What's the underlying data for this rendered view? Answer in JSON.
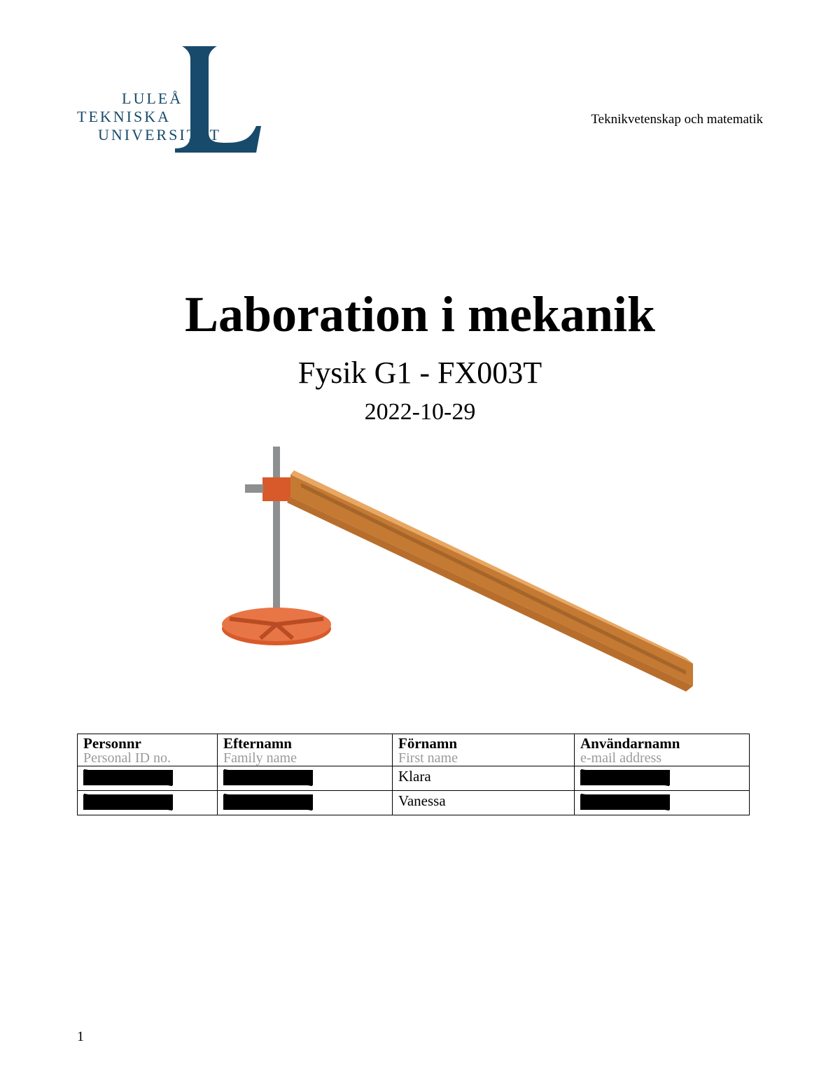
{
  "logo": {
    "word1": "LULEÅ",
    "word2": "TEKNISKA",
    "word3": "UNIVERSITET",
    "color": "#184b6b"
  },
  "header": {
    "department": "Teknikvetenskap och matematik"
  },
  "title": {
    "main": "Laboration i mekanik",
    "subtitle": "Fysik G1 - FX003T",
    "date": "2022-10-29"
  },
  "figure": {
    "type": "diagram",
    "description": "Inclined track on a lab stand",
    "track_color": "#d48a3e",
    "track_highlight": "#e8a762",
    "stand_color": "#8e8f90",
    "clamp_color": "#d85a2a",
    "base_color": "#d85a2a",
    "background": "#ffffff"
  },
  "table": {
    "columns": [
      {
        "label": "Personnr",
        "sublabel": "Personal ID no."
      },
      {
        "label": "Efternamn",
        "sublabel": "Family name"
      },
      {
        "label": "Förnamn",
        "sublabel": "First name"
      },
      {
        "label": "Användarnamn",
        "sublabel": "e-mail address"
      }
    ],
    "rows": [
      {
        "personnr": "[REDACTED]",
        "efternamn": "[REDACTED]",
        "fornamn": "Klara",
        "anvandarnamn": "[REDACTED]"
      },
      {
        "personnr": "[REDACTED]",
        "efternamn": "[REDACTED]",
        "fornamn": "Vanessa",
        "anvandarnamn": "[REDACTED]"
      }
    ],
    "redacted_token": "[REDACTED]",
    "border_color": "#000000",
    "header_font_size": 21,
    "sub_color": "#9a9a9a"
  },
  "page_number": "1"
}
